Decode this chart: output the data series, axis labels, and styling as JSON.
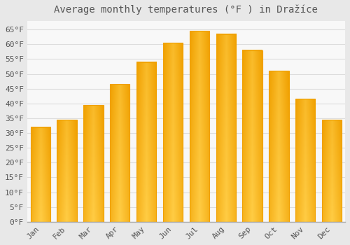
{
  "title": "Average monthly temperatures (°F ) in Dražíce",
  "months": [
    "Jan",
    "Feb",
    "Mar",
    "Apr",
    "May",
    "Jun",
    "Jul",
    "Aug",
    "Sep",
    "Oct",
    "Nov",
    "Dec"
  ],
  "values": [
    32,
    34.5,
    39.5,
    46.5,
    54,
    60.5,
    64.5,
    63.5,
    58,
    51,
    41.5,
    34.5
  ],
  "bar_color_light": "#FFCC44",
  "bar_color_dark": "#F0A000",
  "background_color": "#E8E8E8",
  "plot_bg_color": "#F8F8F8",
  "grid_color": "#DDDDDD",
  "text_color": "#555555",
  "ylim": [
    0,
    68
  ],
  "yticks": [
    0,
    5,
    10,
    15,
    20,
    25,
    30,
    35,
    40,
    45,
    50,
    55,
    60,
    65
  ],
  "title_fontsize": 10,
  "tick_fontsize": 8
}
